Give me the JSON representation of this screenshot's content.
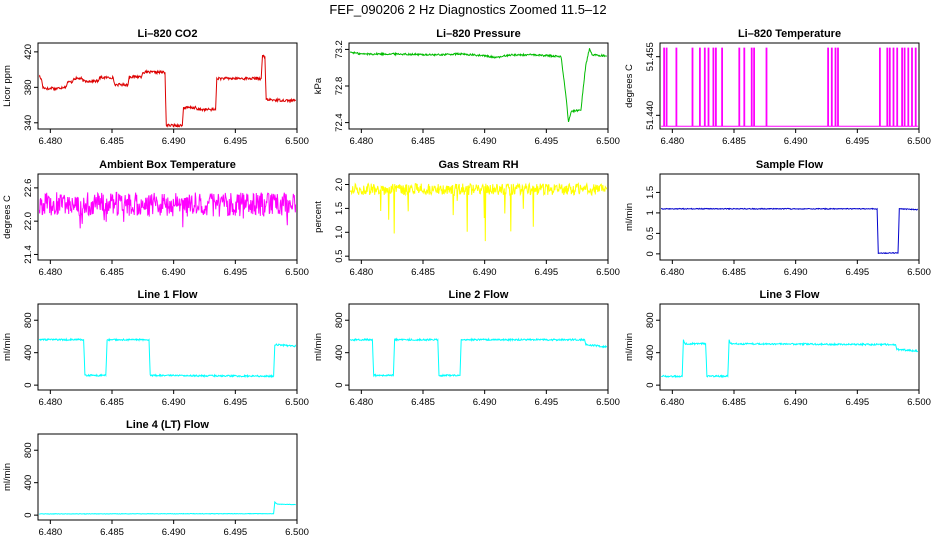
{
  "title": "FEF_090206  2 Hz Diagnostics Zoomed 11.5–12",
  "chart_data": [
    {
      "type": "line",
      "title": "Li–820 CO2",
      "ylabel": "Licor ppm",
      "color": "#dd0000",
      "xlim": [
        6.479,
        6.5
      ],
      "ylim": [
        333,
        430
      ],
      "xticks": [
        "6.480",
        "6.485",
        "6.490",
        "6.495",
        "6.500"
      ],
      "xtickvals": [
        6.48,
        6.485,
        6.49,
        6.495,
        6.5
      ],
      "yticks": [
        "340",
        "380",
        "420"
      ],
      "ytickvals": [
        340,
        380,
        420
      ],
      "noise": 1.5,
      "spikes": 0,
      "x": [
        6.4791,
        6.4793,
        6.4794,
        6.4799,
        6.4802,
        6.4803,
        6.4813,
        6.4814,
        6.4818,
        6.4819,
        6.4825,
        6.4827,
        6.4839,
        6.484,
        6.4851,
        6.4852,
        6.4863,
        6.4864,
        6.4874,
        6.4875,
        6.4893,
        6.4894,
        6.4907,
        6.4908,
        6.4918,
        6.4919,
        6.4934,
        6.4935,
        6.4971,
        6.4972,
        6.4974,
        6.4975,
        6.4999
      ],
      "y": [
        393,
        388,
        380,
        378,
        380,
        378,
        381,
        386,
        386,
        390,
        390,
        387,
        387,
        391,
        391,
        383,
        383,
        392,
        392,
        397,
        397,
        337,
        337,
        357,
        357,
        355,
        355,
        390,
        390,
        415,
        415,
        366,
        365
      ]
    },
    {
      "type": "line",
      "title": "Li–820 Pressure",
      "ylabel": "kPa",
      "color": "#00bb00",
      "xlim": [
        6.479,
        6.5
      ],
      "ylim": [
        72.33,
        73.27
      ],
      "xticks": [
        "6.480",
        "6.485",
        "6.490",
        "6.495",
        "6.500"
      ],
      "xtickvals": [
        6.48,
        6.485,
        6.49,
        6.495,
        6.5
      ],
      "yticks": [
        "72.4",
        "72.8",
        "73.2"
      ],
      "ytickvals": [
        72.4,
        72.8,
        73.2
      ],
      "noise": 0.01,
      "spikes": 0,
      "x": [
        6.4791,
        6.48,
        6.483,
        6.486,
        6.488,
        6.49,
        6.491,
        6.492,
        6.494,
        6.4955,
        6.4962,
        6.4966,
        6.4968,
        6.497,
        6.4978,
        6.4982,
        6.4985,
        6.4987,
        6.4999
      ],
      "y": [
        73.17,
        73.15,
        73.15,
        73.14,
        73.15,
        73.13,
        73.11,
        73.14,
        73.14,
        73.13,
        73.12,
        72.68,
        72.4,
        72.52,
        72.54,
        73.03,
        73.21,
        73.14,
        73.13
      ]
    },
    {
      "type": "line",
      "title": "Li–820 Temperature",
      "ylabel": "degrees C",
      "color": "#ff00ff",
      "xlim": [
        6.479,
        6.5
      ],
      "ylim": [
        51.4365,
        51.4585
      ],
      "xticks": [
        "6.480",
        "6.485",
        "6.490",
        "6.495",
        "6.500"
      ],
      "xtickvals": [
        6.48,
        6.485,
        6.49,
        6.495,
        6.5
      ],
      "yticks": [
        "51.440",
        "51.455"
      ],
      "ytickvals": [
        51.44,
        51.455
      ],
      "base": 51.4372,
      "high": 51.4572,
      "pulses": [
        6.4793,
        6.4795,
        6.4803,
        6.4816,
        6.4822,
        6.4826,
        6.4829,
        6.4833,
        6.4835,
        6.484,
        6.4854,
        6.4858,
        6.4864,
        6.4866,
        6.4876,
        6.4926,
        6.4929,
        6.4932,
        6.4934,
        6.4968,
        6.4974,
        6.4976,
        6.4979,
        6.4982,
        6.4986,
        6.4988,
        6.4991,
        6.4994,
        6.4997
      ]
    },
    {
      "type": "line",
      "title": "Ambient Box Temperature",
      "ylabel": "degrees C",
      "color": "#ff00ff",
      "xlim": [
        6.479,
        6.5
      ],
      "ylim": [
        21.3,
        22.85
      ],
      "xticks": [
        "6.480",
        "6.485",
        "6.490",
        "6.495",
        "6.500"
      ],
      "xtickvals": [
        6.48,
        6.485,
        6.49,
        6.495,
        6.5
      ],
      "yticks": [
        "21.4",
        "22.0",
        "22.6"
      ],
      "ytickvals": [
        21.4,
        22.0,
        22.6
      ],
      "noise": 0.22,
      "spikes": 0.5,
      "x": [
        6.4791,
        6.4999
      ],
      "y": [
        22.3,
        22.3
      ]
    },
    {
      "type": "line",
      "title": "Gas Stream RH",
      "ylabel": "percent",
      "color": "#ffff00",
      "xlim": [
        6.479,
        6.5
      ],
      "ylim": [
        0.42,
        2.22
      ],
      "xticks": [
        "6.480",
        "6.485",
        "6.490",
        "6.495",
        "6.500"
      ],
      "xtickvals": [
        6.48,
        6.485,
        6.49,
        6.495,
        6.5
      ],
      "yticks": [
        "0.5",
        "1.0",
        "1.5",
        "2.0"
      ],
      "ytickvals": [
        0.5,
        1.0,
        1.5,
        2.0
      ],
      "noise": 0.12,
      "spikes": 1.3,
      "x": [
        6.4791,
        6.4999
      ],
      "y": [
        1.9,
        1.9
      ]
    },
    {
      "type": "line",
      "title": "Sample Flow",
      "ylabel": "ml/min",
      "color": "#0000cc",
      "xlim": [
        6.479,
        6.5
      ],
      "ylim": [
        -0.15,
        1.95
      ],
      "xticks": [
        "6.480",
        "6.485",
        "6.490",
        "6.495",
        "6.500"
      ],
      "xtickvals": [
        6.48,
        6.485,
        6.49,
        6.495,
        6.5
      ],
      "yticks": [
        "0",
        "0.5",
        "1",
        "1.5"
      ],
      "ytickvals": [
        0,
        0.5,
        1.0,
        1.5
      ],
      "noise": 0.01,
      "spikes": 0,
      "x": [
        6.4791,
        6.4966,
        6.4967,
        6.4983,
        6.4984,
        6.4999
      ],
      "y": [
        1.1,
        1.1,
        0.02,
        0.02,
        1.1,
        1.08
      ]
    },
    {
      "type": "line",
      "title": "Line 1 Flow",
      "ylabel": "ml/min",
      "color": "#00ffff",
      "xlim": [
        6.479,
        6.5
      ],
      "ylim": [
        -60,
        1000
      ],
      "xticks": [
        "6.480",
        "6.485",
        "6.490",
        "6.495",
        "6.500"
      ],
      "xtickvals": [
        6.48,
        6.485,
        6.49,
        6.495,
        6.5
      ],
      "yticks": [
        "0",
        "400",
        "800"
      ],
      "ytickvals": [
        0,
        400,
        800
      ],
      "noise": 10,
      "spikes": 0,
      "x": [
        6.4791,
        6.4827,
        6.4828,
        6.4845,
        6.4846,
        6.488,
        6.4881,
        6.4981,
        6.4982,
        6.4999
      ],
      "y": [
        560,
        560,
        120,
        120,
        560,
        560,
        120,
        110,
        500,
        480
      ]
    },
    {
      "type": "line",
      "title": "Line 2 Flow",
      "ylabel": "ml/min",
      "color": "#00ffff",
      "xlim": [
        6.479,
        6.5
      ],
      "ylim": [
        -60,
        1000
      ],
      "xticks": [
        "6.480",
        "6.485",
        "6.490",
        "6.495",
        "6.500"
      ],
      "xtickvals": [
        6.48,
        6.485,
        6.49,
        6.495,
        6.5
      ],
      "yticks": [
        "0",
        "400",
        "800"
      ],
      "ytickvals": [
        0,
        400,
        800
      ],
      "noise": 10,
      "spikes": 0,
      "x": [
        6.4791,
        6.4809,
        6.481,
        6.4826,
        6.4827,
        6.4862,
        6.4863,
        6.488,
        6.4881,
        6.4981,
        6.4982,
        6.4999
      ],
      "y": [
        560,
        560,
        120,
        120,
        560,
        560,
        120,
        120,
        560,
        560,
        500,
        470
      ]
    },
    {
      "type": "line",
      "title": "Line 3 Flow",
      "ylabel": "ml/min",
      "color": "#00ffff",
      "xlim": [
        6.479,
        6.5
      ],
      "ylim": [
        -60,
        1000
      ],
      "xticks": [
        "6.480",
        "6.485",
        "6.490",
        "6.495",
        "6.500"
      ],
      "xtickvals": [
        6.48,
        6.485,
        6.49,
        6.495,
        6.5
      ],
      "yticks": [
        "0",
        "400",
        "800"
      ],
      "ytickvals": [
        0,
        400,
        800
      ],
      "noise": 10,
      "spikes": 0,
      "x": [
        6.4791,
        6.4808,
        6.4809,
        6.481,
        6.4827,
        6.4828,
        6.4845,
        6.4846,
        6.4847,
        6.4981,
        6.4982,
        6.4999
      ],
      "y": [
        110,
        110,
        560,
        510,
        510,
        110,
        110,
        560,
        510,
        500,
        440,
        420
      ]
    },
    {
      "type": "line",
      "title": "Line 4 (LT) Flow",
      "ylabel": "ml/min",
      "color": "#00ffff",
      "xlim": [
        6.479,
        6.5
      ],
      "ylim": [
        -60,
        1000
      ],
      "xticks": [
        "6.480",
        "6.485",
        "6.490",
        "6.495",
        "6.500"
      ],
      "xtickvals": [
        6.48,
        6.485,
        6.49,
        6.495,
        6.5
      ],
      "yticks": [
        "0",
        "400",
        "800"
      ],
      "ytickvals": [
        0,
        400,
        800
      ],
      "noise": 3,
      "spikes": 0,
      "x": [
        6.4791,
        6.4981,
        6.4982,
        6.4984,
        6.4999
      ],
      "y": [
        15,
        18,
        160,
        135,
        130
      ]
    }
  ]
}
